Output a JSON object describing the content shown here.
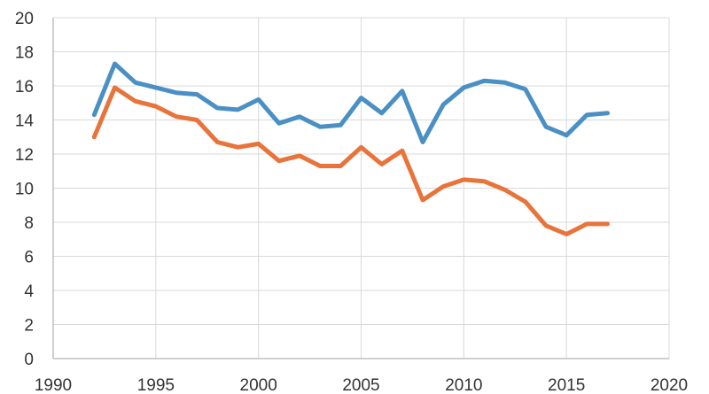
{
  "chart_data": {
    "type": "line",
    "title": "",
    "xlabel": "",
    "ylabel": "",
    "xlim": [
      1990,
      2020
    ],
    "ylim": [
      0,
      20
    ],
    "x_ticks": [
      1990,
      1995,
      2000,
      2005,
      2010,
      2015,
      2020
    ],
    "y_ticks": [
      0,
      2,
      4,
      6,
      8,
      10,
      12,
      14,
      16,
      18,
      20
    ],
    "grid": true,
    "legend": "none",
    "x": [
      1992,
      1993,
      1994,
      1995,
      1996,
      1997,
      1998,
      1999,
      2000,
      2001,
      2002,
      2003,
      2004,
      2005,
      2006,
      2007,
      2008,
      2009,
      2010,
      2011,
      2012,
      2013,
      2014,
      2015,
      2016,
      2017
    ],
    "series": [
      {
        "color": "#4a90c4",
        "values": [
          14.3,
          17.3,
          16.2,
          15.9,
          15.6,
          15.5,
          14.7,
          14.6,
          15.2,
          13.8,
          14.2,
          13.6,
          13.7,
          15.3,
          14.4,
          15.7,
          12.7,
          14.9,
          15.9,
          16.3,
          16.2,
          15.8,
          13.6,
          13.1,
          14.3,
          14.4
        ]
      },
      {
        "color": "#e8743b",
        "values": [
          13.0,
          15.9,
          15.1,
          14.8,
          14.2,
          14.0,
          12.7,
          12.4,
          12.6,
          11.6,
          11.9,
          11.3,
          11.3,
          12.4,
          11.4,
          12.2,
          9.3,
          10.1,
          10.5,
          10.4,
          9.9,
          9.2,
          7.8,
          7.3,
          7.9,
          7.9
        ]
      }
    ]
  }
}
